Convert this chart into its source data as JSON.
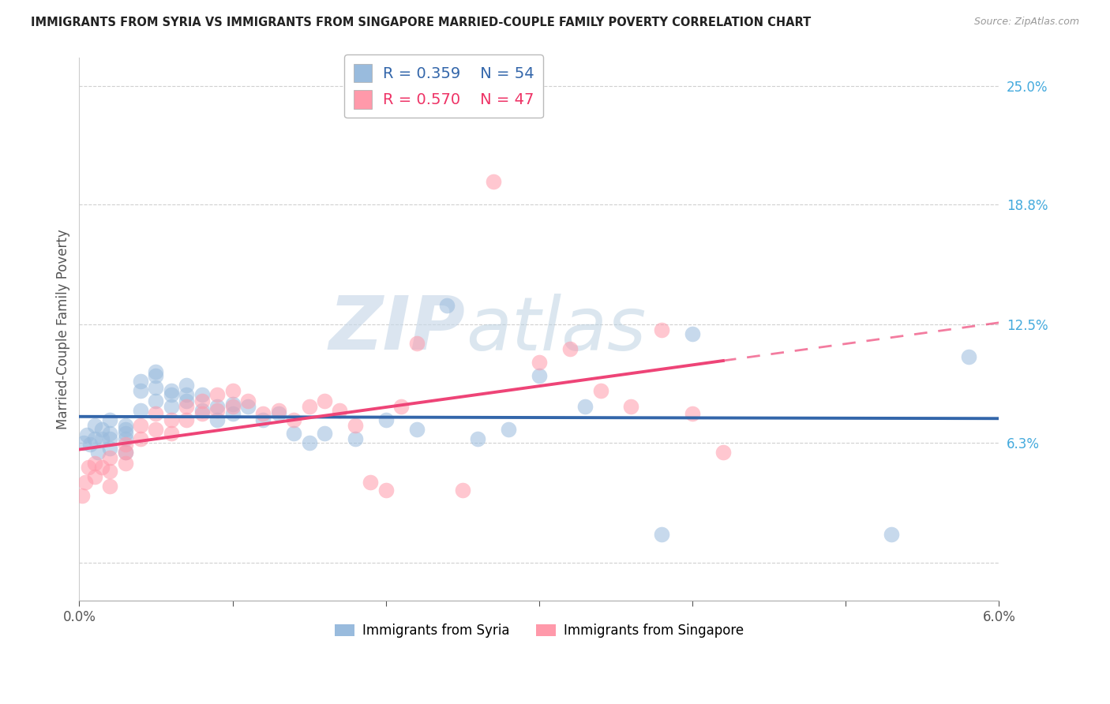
{
  "title": "IMMIGRANTS FROM SYRIA VS IMMIGRANTS FROM SINGAPORE MARRIED-COUPLE FAMILY POVERTY CORRELATION CHART",
  "source": "Source: ZipAtlas.com",
  "ylabel_left": "Married-Couple Family Poverty",
  "legend_syria": "Immigrants from Syria",
  "legend_singapore": "Immigrants from Singapore",
  "r_syria": 0.359,
  "n_syria": 54,
  "r_singapore": 0.57,
  "n_singapore": 47,
  "color_syria": "#99BBDD",
  "color_singapore": "#FF99AA",
  "color_syria_line": "#3366AA",
  "color_singapore_line": "#EE4477",
  "xmin": 0.0,
  "xmax": 0.06,
  "ymin": -0.02,
  "ymax": 0.265,
  "watermark": "ZIPAtlas",
  "syria_x": [
    0.0003,
    0.0005,
    0.0007,
    0.001,
    0.001,
    0.0012,
    0.0015,
    0.0015,
    0.002,
    0.002,
    0.002,
    0.002,
    0.003,
    0.003,
    0.003,
    0.003,
    0.003,
    0.004,
    0.004,
    0.004,
    0.005,
    0.005,
    0.005,
    0.005,
    0.006,
    0.006,
    0.006,
    0.007,
    0.007,
    0.007,
    0.008,
    0.008,
    0.009,
    0.009,
    0.01,
    0.01,
    0.011,
    0.012,
    0.013,
    0.014,
    0.015,
    0.016,
    0.018,
    0.02,
    0.022,
    0.024,
    0.026,
    0.028,
    0.03,
    0.033,
    0.038,
    0.04,
    0.053,
    0.058
  ],
  "syria_y": [
    0.063,
    0.067,
    0.062,
    0.072,
    0.065,
    0.058,
    0.07,
    0.065,
    0.06,
    0.068,
    0.075,
    0.065,
    0.068,
    0.072,
    0.065,
    0.058,
    0.07,
    0.08,
    0.09,
    0.095,
    0.092,
    0.098,
    0.1,
    0.085,
    0.09,
    0.088,
    0.082,
    0.085,
    0.088,
    0.093,
    0.08,
    0.088,
    0.075,
    0.082,
    0.078,
    0.083,
    0.082,
    0.075,
    0.078,
    0.068,
    0.063,
    0.068,
    0.065,
    0.075,
    0.07,
    0.135,
    0.065,
    0.07,
    0.098,
    0.082,
    0.015,
    0.12,
    0.015,
    0.108
  ],
  "singapore_x": [
    0.0002,
    0.0004,
    0.0006,
    0.001,
    0.001,
    0.0015,
    0.002,
    0.002,
    0.002,
    0.003,
    0.003,
    0.003,
    0.004,
    0.004,
    0.005,
    0.005,
    0.006,
    0.006,
    0.007,
    0.007,
    0.008,
    0.008,
    0.009,
    0.009,
    0.01,
    0.01,
    0.011,
    0.012,
    0.013,
    0.014,
    0.015,
    0.016,
    0.017,
    0.018,
    0.019,
    0.02,
    0.021,
    0.022,
    0.025,
    0.027,
    0.03,
    0.032,
    0.034,
    0.036,
    0.038,
    0.04,
    0.042
  ],
  "singapore_y": [
    0.035,
    0.042,
    0.05,
    0.045,
    0.052,
    0.05,
    0.055,
    0.048,
    0.04,
    0.058,
    0.062,
    0.052,
    0.065,
    0.072,
    0.07,
    0.078,
    0.075,
    0.068,
    0.082,
    0.075,
    0.085,
    0.078,
    0.088,
    0.08,
    0.09,
    0.082,
    0.085,
    0.078,
    0.08,
    0.075,
    0.082,
    0.085,
    0.08,
    0.072,
    0.042,
    0.038,
    0.082,
    0.115,
    0.038,
    0.2,
    0.105,
    0.112,
    0.09,
    0.082,
    0.122,
    0.078,
    0.058
  ]
}
